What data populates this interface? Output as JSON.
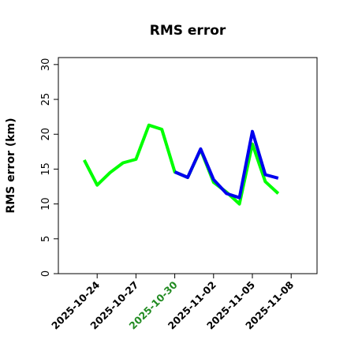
{
  "chart_data": {
    "type": "line",
    "title": "RMS error",
    "xlabel": "",
    "ylabel": "RMS error (km)",
    "ylim": [
      0,
      31
    ],
    "yticks": [
      0,
      5,
      10,
      15,
      20,
      25,
      30
    ],
    "xlim": [
      "2025-10-21",
      "2025-11-10"
    ],
    "xticks": [
      "2025-10-24",
      "2025-10-27",
      "2025-10-30",
      "2025-11-02",
      "2025-11-05",
      "2025-11-08"
    ],
    "highlight_xtick": "2025-10-30",
    "highlight_color": "#228B22",
    "grid": false,
    "legend": "none",
    "series": [
      {
        "color": "#00FF00",
        "points": [
          [
            "2025-10-23",
            16.3
          ],
          [
            "2025-10-24",
            12.7
          ],
          [
            "2025-10-25",
            14.5
          ],
          [
            "2025-10-26",
            15.9
          ],
          [
            "2025-10-27",
            16.4
          ],
          [
            "2025-10-28",
            21.3
          ],
          [
            "2025-10-29",
            20.7
          ],
          [
            "2025-10-30",
            14.6
          ],
          [
            "2025-10-31",
            13.8
          ],
          [
            "2025-11-01",
            17.8
          ],
          [
            "2025-11-02",
            13.1
          ],
          [
            "2025-11-03",
            11.7
          ],
          [
            "2025-11-04",
            10.0
          ],
          [
            "2025-11-05",
            18.6
          ],
          [
            "2025-11-06",
            13.2
          ],
          [
            "2025-11-07",
            11.5
          ]
        ]
      },
      {
        "color": "#0000EE",
        "points": [
          [
            "2025-10-30",
            14.6
          ],
          [
            "2025-10-31",
            13.8
          ],
          [
            "2025-11-01",
            17.9
          ],
          [
            "2025-11-02",
            13.5
          ],
          [
            "2025-11-03",
            11.5
          ],
          [
            "2025-11-04",
            10.9
          ],
          [
            "2025-11-05",
            20.4
          ],
          [
            "2025-11-06",
            14.2
          ],
          [
            "2025-11-07",
            13.7
          ]
        ]
      }
    ]
  }
}
